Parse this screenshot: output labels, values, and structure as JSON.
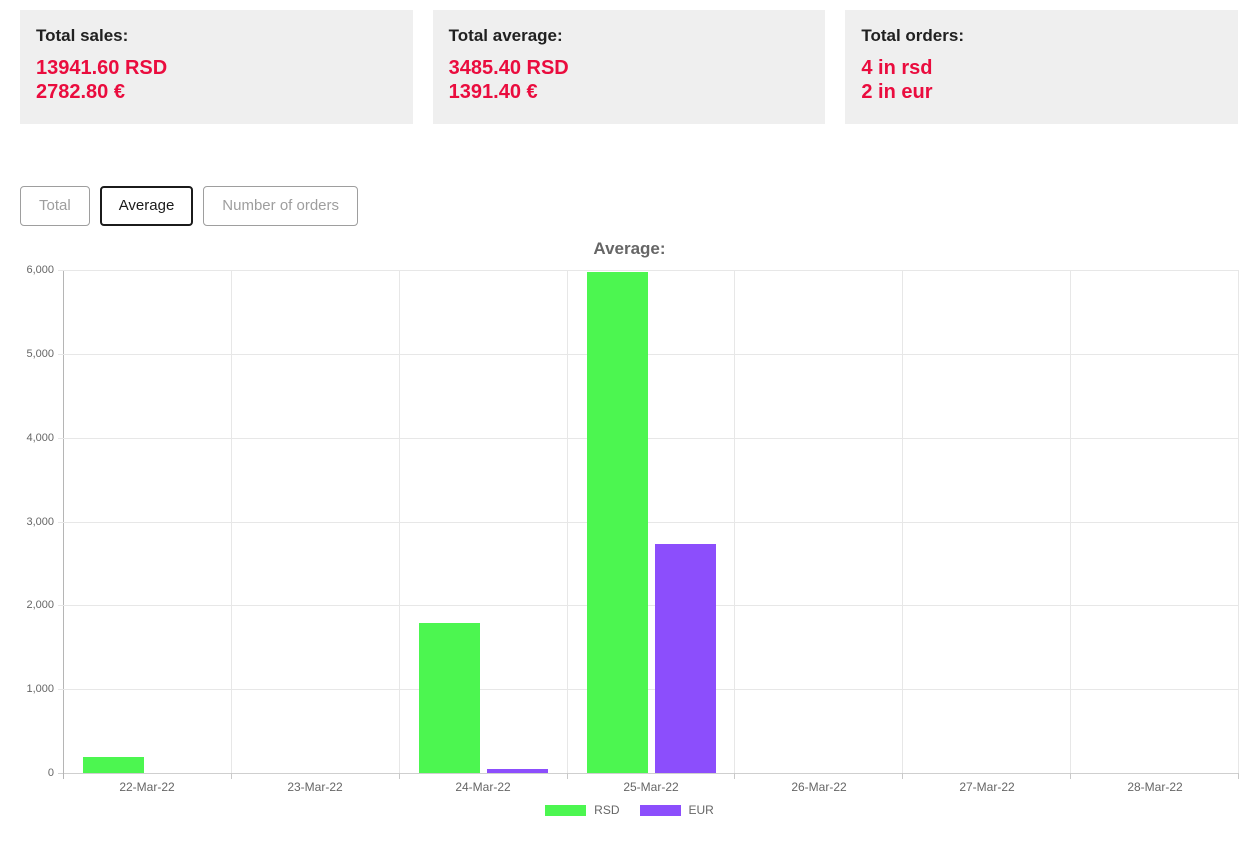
{
  "cards": [
    {
      "title": "Total sales:",
      "line1": "13941.60 RSD",
      "line2": "2782.80 €"
    },
    {
      "title": "Total average:",
      "line1": "3485.40 RSD",
      "line2": "1391.40 €"
    },
    {
      "title": "Total orders:",
      "line1": "4 in rsd",
      "line2": "2 in eur"
    }
  ],
  "tabs": [
    {
      "label": "Total",
      "active": false
    },
    {
      "label": "Average",
      "active": true
    },
    {
      "label": "Number of orders",
      "active": false
    }
  ],
  "chart_data": {
    "type": "bar",
    "title": "Average:",
    "categories": [
      "22-Mar-22",
      "23-Mar-22",
      "24-Mar-22",
      "25-Mar-22",
      "26-Mar-22",
      "27-Mar-22",
      "28-Mar-22"
    ],
    "series": [
      {
        "name": "RSD",
        "color": "#4cf650",
        "values": [
          195.6,
          0,
          1786,
          5980,
          0,
          0,
          0
        ]
      },
      {
        "name": "EUR",
        "color": "#8c4efc",
        "values": [
          0,
          0,
          50,
          2732.8,
          0,
          0,
          0
        ]
      }
    ],
    "xlabel": "",
    "ylabel": "",
    "ylim": [
      0,
      6000
    ],
    "ytick_step": 1000,
    "grid": true,
    "legend_position": "bottom"
  },
  "colors": {
    "card_background": "#efefef",
    "value_red": "#ea0c3e",
    "chart_text": "#666666",
    "rsd_green": "#4cf650",
    "eur_purple": "#8c4efc"
  }
}
